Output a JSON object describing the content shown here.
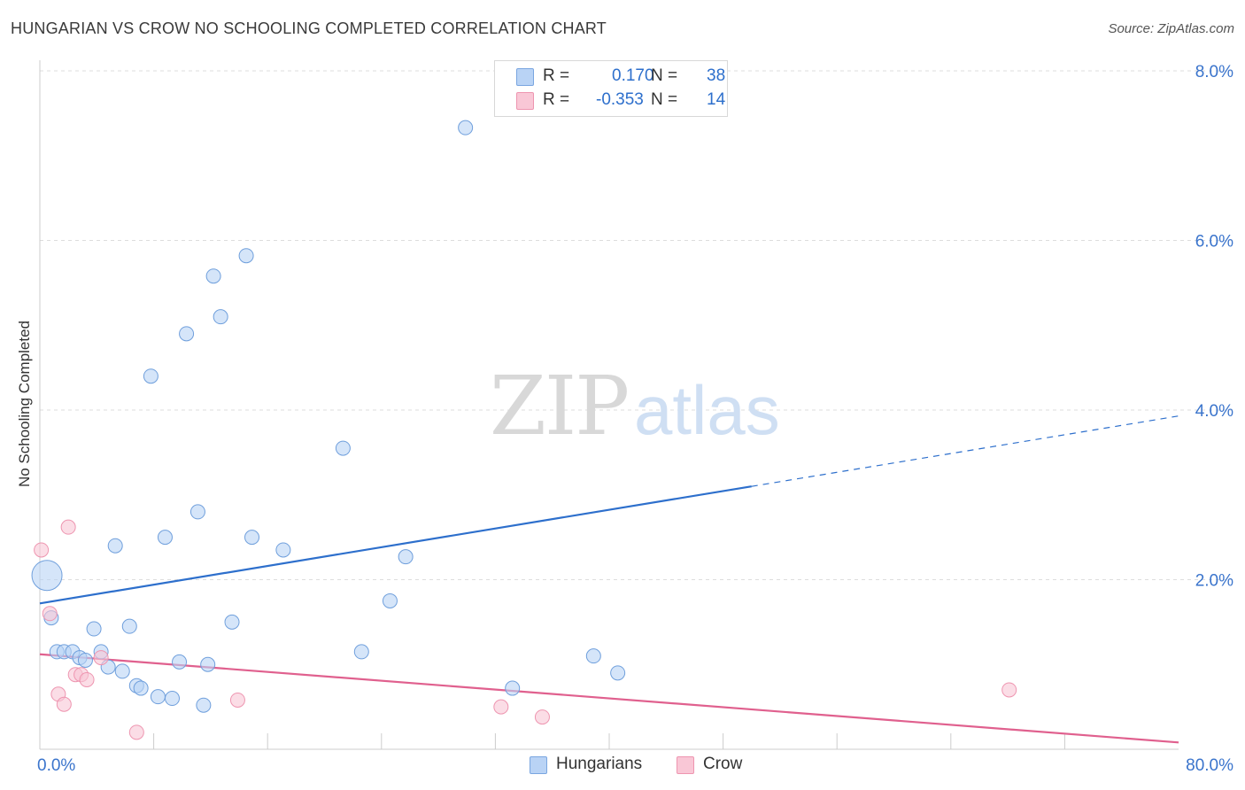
{
  "title": "HUNGARIAN VS CROW NO SCHOOLING COMPLETED CORRELATION CHART",
  "source": "Source: ZipAtlas.com",
  "watermark": {
    "zip": "ZIP",
    "atlas": "atlas"
  },
  "stats": [
    {
      "series": "Hungarians",
      "r_label": "R =",
      "r_value": "0.170",
      "n_label": "N =",
      "n_value": "38"
    },
    {
      "series": "Crow",
      "r_label": "R =",
      "r_value": "-0.353",
      "n_label": "N =",
      "n_value": "14"
    }
  ],
  "legend": {
    "hungarians": "Hungarians",
    "crow": "Crow"
  },
  "colors": {
    "blue_fill": "#b9d3f5",
    "blue_stroke": "#6f9fdc",
    "blue_line": "#2d6fcc",
    "pink_fill": "#f9c7d6",
    "pink_stroke": "#ee95b0",
    "pink_line": "#e0608e",
    "tick_text": "#3a74cc",
    "grid": "#dddddd"
  },
  "chart_data": {
    "type": "scatter",
    "title": "HUNGARIAN VS CROW NO SCHOOLING COMPLETED CORRELATION CHART",
    "xlabel": "",
    "ylabel": "No Schooling Completed",
    "xlim": [
      0,
      80
    ],
    "ylim": [
      0,
      8
    ],
    "x_tick_labels": [
      "0.0%",
      "80.0%"
    ],
    "y_ticks": [
      2,
      4,
      6,
      8
    ],
    "y_tick_labels": [
      "2.0%",
      "4.0%",
      "6.0%",
      "8.0%"
    ],
    "grid": true,
    "legend_position": "bottom-center",
    "series": [
      {
        "name": "Hungarians",
        "points": [
          [
            0.5,
            2.05
          ],
          [
            0.8,
            1.55
          ],
          [
            1.2,
            1.15
          ],
          [
            1.7,
            1.15
          ],
          [
            2.3,
            1.15
          ],
          [
            2.8,
            1.08
          ],
          [
            3.2,
            1.05
          ],
          [
            3.8,
            1.42
          ],
          [
            4.3,
            1.15
          ],
          [
            4.8,
            0.97
          ],
          [
            5.3,
            2.4
          ],
          [
            5.8,
            0.92
          ],
          [
            6.3,
            1.45
          ],
          [
            6.8,
            0.75
          ],
          [
            7.1,
            0.72
          ],
          [
            7.8,
            4.4
          ],
          [
            8.3,
            0.62
          ],
          [
            8.8,
            2.5
          ],
          [
            9.3,
            0.6
          ],
          [
            9.8,
            1.03
          ],
          [
            10.3,
            4.9
          ],
          [
            11.1,
            2.8
          ],
          [
            11.5,
            0.52
          ],
          [
            11.8,
            1.0
          ],
          [
            12.2,
            5.58
          ],
          [
            12.7,
            5.1
          ],
          [
            13.5,
            1.5
          ],
          [
            14.5,
            5.82
          ],
          [
            14.9,
            2.5
          ],
          [
            17.1,
            2.35
          ],
          [
            21.3,
            3.55
          ],
          [
            22.6,
            1.15
          ],
          [
            24.6,
            1.75
          ],
          [
            25.7,
            2.27
          ],
          [
            29.9,
            7.33
          ],
          [
            33.2,
            0.72
          ],
          [
            38.9,
            1.1
          ],
          [
            40.6,
            0.9
          ]
        ],
        "trend": {
          "x": [
            0,
            50
          ],
          "y": [
            1.72,
            3.1
          ],
          "dashed_extension": {
            "x": [
              50,
              80
            ],
            "y": [
              3.1,
              3.93
            ]
          }
        }
      },
      {
        "name": "Crow",
        "points": [
          [
            0.1,
            2.35
          ],
          [
            0.7,
            1.6
          ],
          [
            1.3,
            0.65
          ],
          [
            1.7,
            0.53
          ],
          [
            2.0,
            2.62
          ],
          [
            2.5,
            0.88
          ],
          [
            2.9,
            0.88
          ],
          [
            3.3,
            0.82
          ],
          [
            4.3,
            1.08
          ],
          [
            6.8,
            0.2
          ],
          [
            13.9,
            0.58
          ],
          [
            32.4,
            0.5
          ],
          [
            35.3,
            0.38
          ],
          [
            68.1,
            0.7
          ]
        ],
        "trend": {
          "x": [
            0,
            80
          ],
          "y": [
            1.12,
            0.08
          ]
        }
      }
    ]
  }
}
